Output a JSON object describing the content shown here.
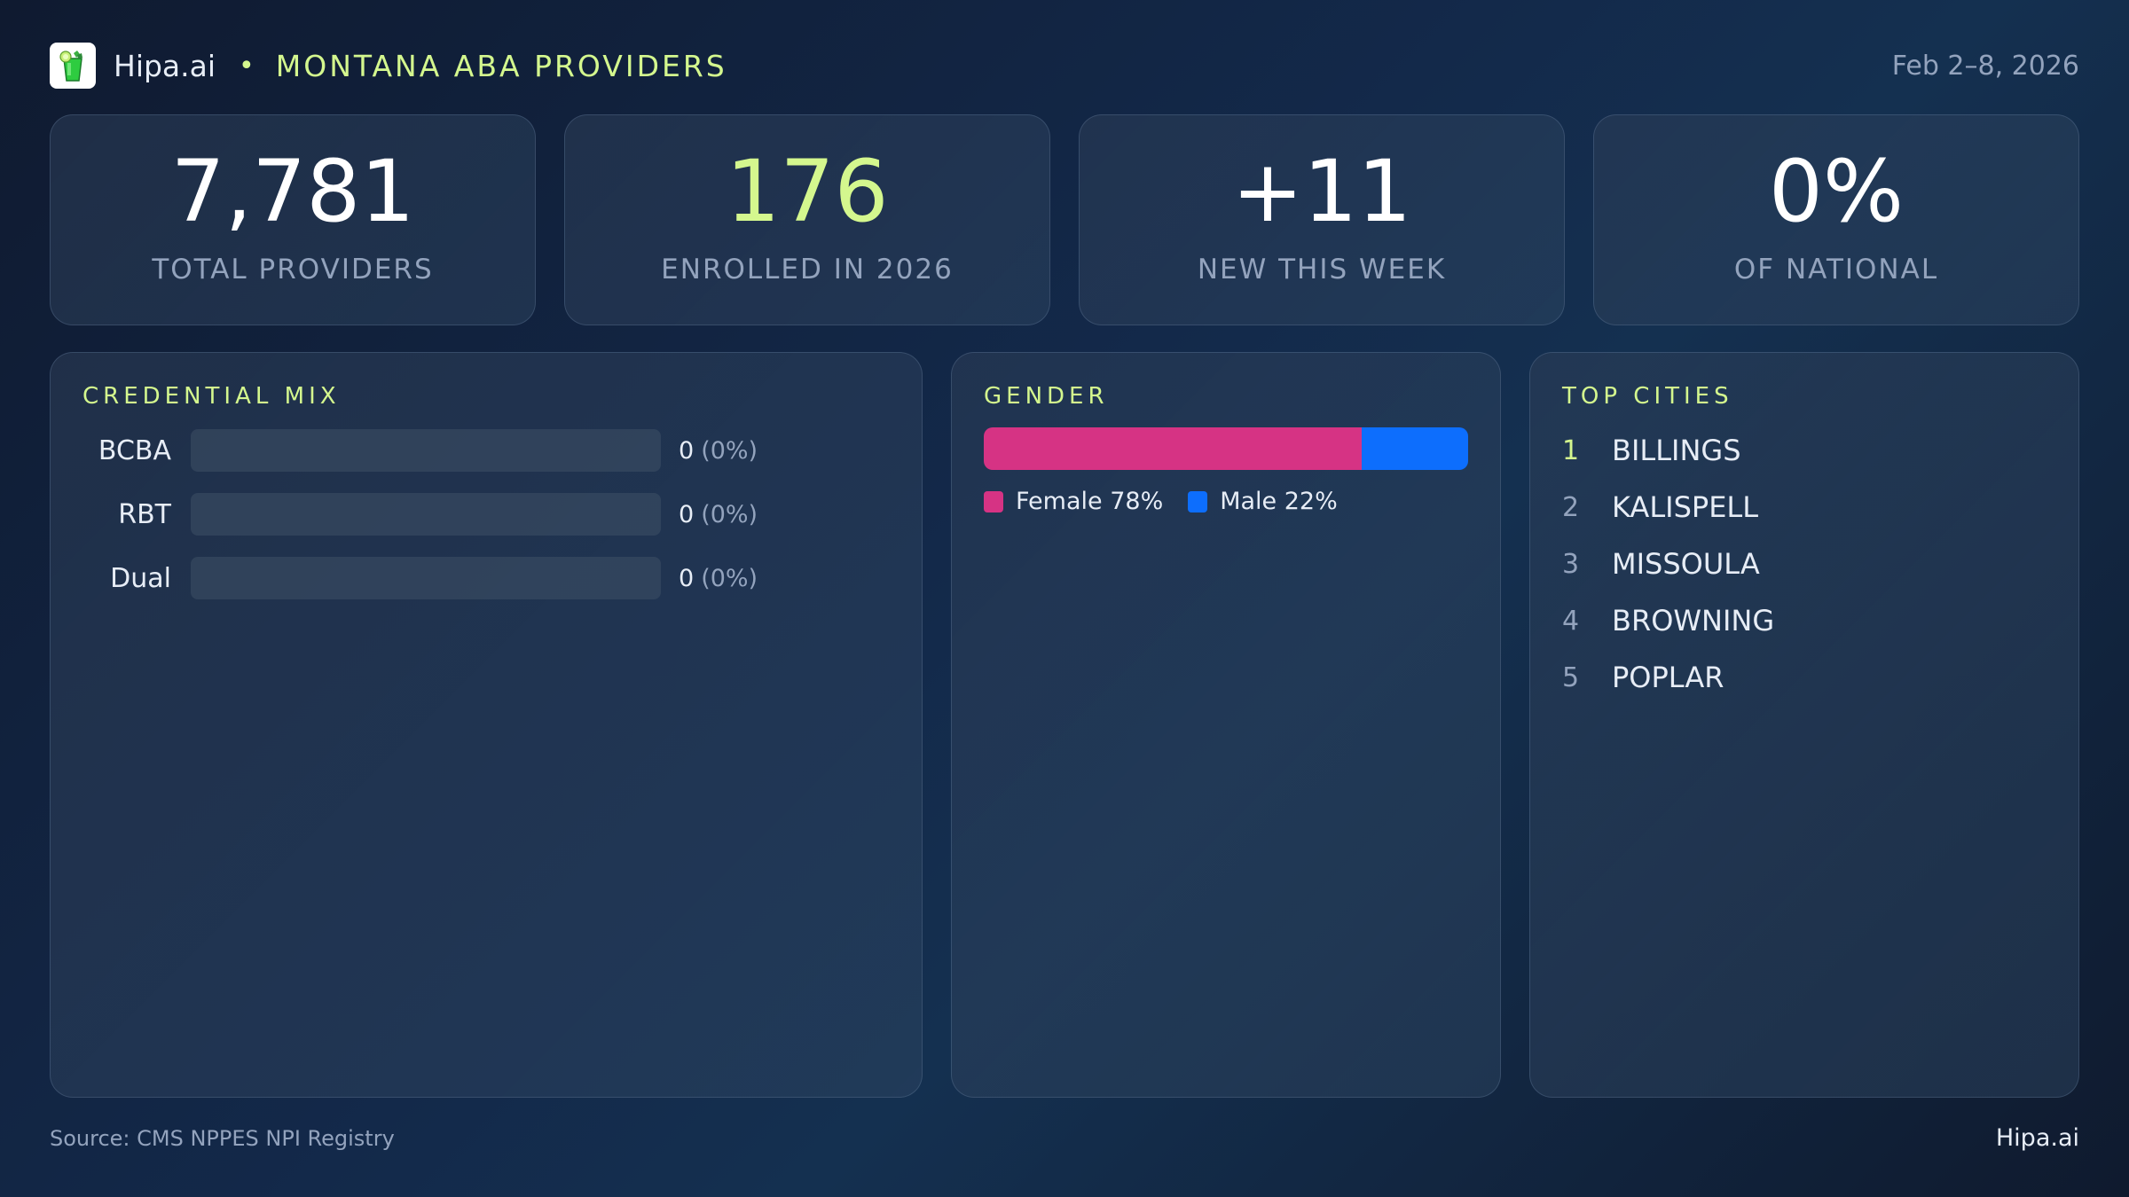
{
  "header": {
    "logo_icon": "mojito-glass-icon",
    "brand": "Hipa.ai",
    "separator": "•",
    "title": "MONTANA ABA PROVIDERS",
    "date_range": "Feb 2–8, 2026"
  },
  "kpis": [
    {
      "value": "7,781",
      "label": "TOTAL PROVIDERS",
      "color": "#ffffff"
    },
    {
      "value": "176",
      "label": "ENROLLED IN 2026",
      "color": "#d4f78e"
    },
    {
      "value": "+11",
      "label": "NEW THIS WEEK",
      "color": "#ffffff"
    },
    {
      "value": "0%",
      "label": "OF NATIONAL",
      "color": "#ffffff"
    }
  ],
  "credential_mix": {
    "title": "CREDENTIAL MIX",
    "rows": [
      {
        "label": "BCBA",
        "count": "0",
        "pct": "(0%)",
        "value": 0
      },
      {
        "label": "RBT",
        "count": "0",
        "pct": "(0%)",
        "value": 0
      },
      {
        "label": "Dual",
        "count": "0",
        "pct": "(0%)",
        "value": 0
      }
    ]
  },
  "gender": {
    "title": "GENDER",
    "segments": [
      {
        "label": "Female 78%",
        "name": "Female",
        "pct": 78,
        "color": "#d63384"
      },
      {
        "label": "Male 22%",
        "name": "Male",
        "pct": 22,
        "color": "#0d6efd"
      }
    ]
  },
  "top_cities": {
    "title": "TOP CITIES",
    "items": [
      {
        "rank": "1",
        "name": "BILLINGS"
      },
      {
        "rank": "2",
        "name": "KALISPELL"
      },
      {
        "rank": "3",
        "name": "MISSOULA"
      },
      {
        "rank": "4",
        "name": "BROWNING"
      },
      {
        "rank": "5",
        "name": "POPLAR"
      }
    ]
  },
  "footer": {
    "source": "Source: CMS NPPES NPI Registry",
    "brand": "Hipa.ai"
  },
  "colors": {
    "accent": "#d4f78e",
    "muted": "#93a3bd",
    "female": "#d63384",
    "male": "#0d6efd"
  }
}
